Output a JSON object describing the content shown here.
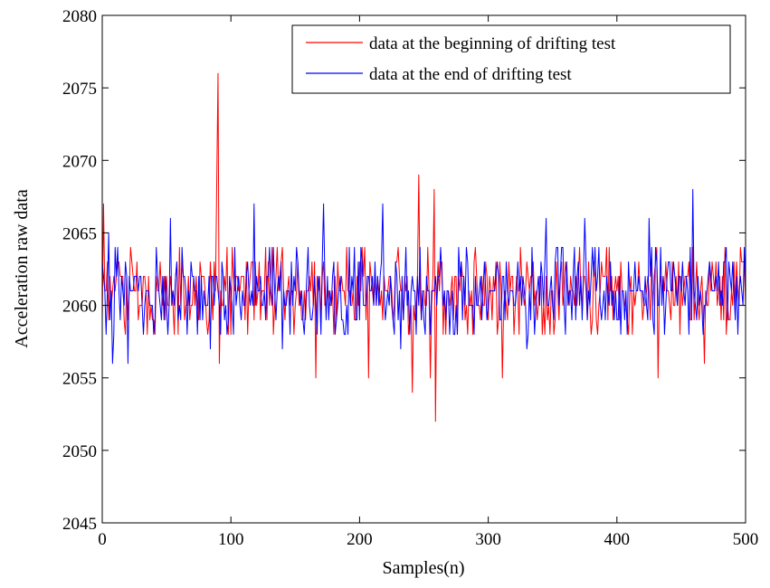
{
  "chart_data": {
    "type": "line",
    "title": "",
    "xlabel": "Samples(n)",
    "ylabel": "Acceleration raw data",
    "xlim": [
      0,
      500
    ],
    "ylim": [
      2045,
      2080
    ],
    "xticks": [
      0,
      100,
      200,
      300,
      400,
      500
    ],
    "yticks": [
      2045,
      2050,
      2055,
      2060,
      2065,
      2070,
      2075,
      2080
    ],
    "grid": false,
    "legend_position": "top-right",
    "baseline": 2060.9,
    "series": [
      {
        "name": "data at the beginning of drifting test",
        "color": "#ff0000",
        "spikes": [
          {
            "x": 1,
            "y": 2067
          },
          {
            "x": 89,
            "y": 2068.5
          },
          {
            "x": 90,
            "y": 2076
          },
          {
            "x": 91,
            "y": 2056
          },
          {
            "x": 166,
            "y": 2055
          },
          {
            "x": 207,
            "y": 2055
          },
          {
            "x": 241,
            "y": 2054
          },
          {
            "x": 246,
            "y": 2069
          },
          {
            "x": 255,
            "y": 2055
          },
          {
            "x": 258,
            "y": 2068
          },
          {
            "x": 259,
            "y": 2052
          },
          {
            "x": 311,
            "y": 2055
          },
          {
            "x": 324,
            "y": 2058
          },
          {
            "x": 380,
            "y": 2058
          },
          {
            "x": 432,
            "y": 2055
          },
          {
            "x": 468,
            "y": 2056
          }
        ]
      },
      {
        "name": "data at the end of drifting test",
        "color": "#0000ff",
        "spikes": [
          {
            "x": 5,
            "y": 2065
          },
          {
            "x": 8,
            "y": 2056
          },
          {
            "x": 12,
            "y": 2064
          },
          {
            "x": 20,
            "y": 2056
          },
          {
            "x": 53,
            "y": 2066
          },
          {
            "x": 84,
            "y": 2057
          },
          {
            "x": 118,
            "y": 2067
          },
          {
            "x": 140,
            "y": 2057
          },
          {
            "x": 172,
            "y": 2067
          },
          {
            "x": 218,
            "y": 2067
          },
          {
            "x": 232,
            "y": 2057
          },
          {
            "x": 330,
            "y": 2057
          },
          {
            "x": 345,
            "y": 2066
          },
          {
            "x": 375,
            "y": 2066
          },
          {
            "x": 425,
            "y": 2066
          },
          {
            "x": 459,
            "y": 2068
          },
          {
            "x": 490,
            "y": 2063
          }
        ]
      }
    ]
  }
}
